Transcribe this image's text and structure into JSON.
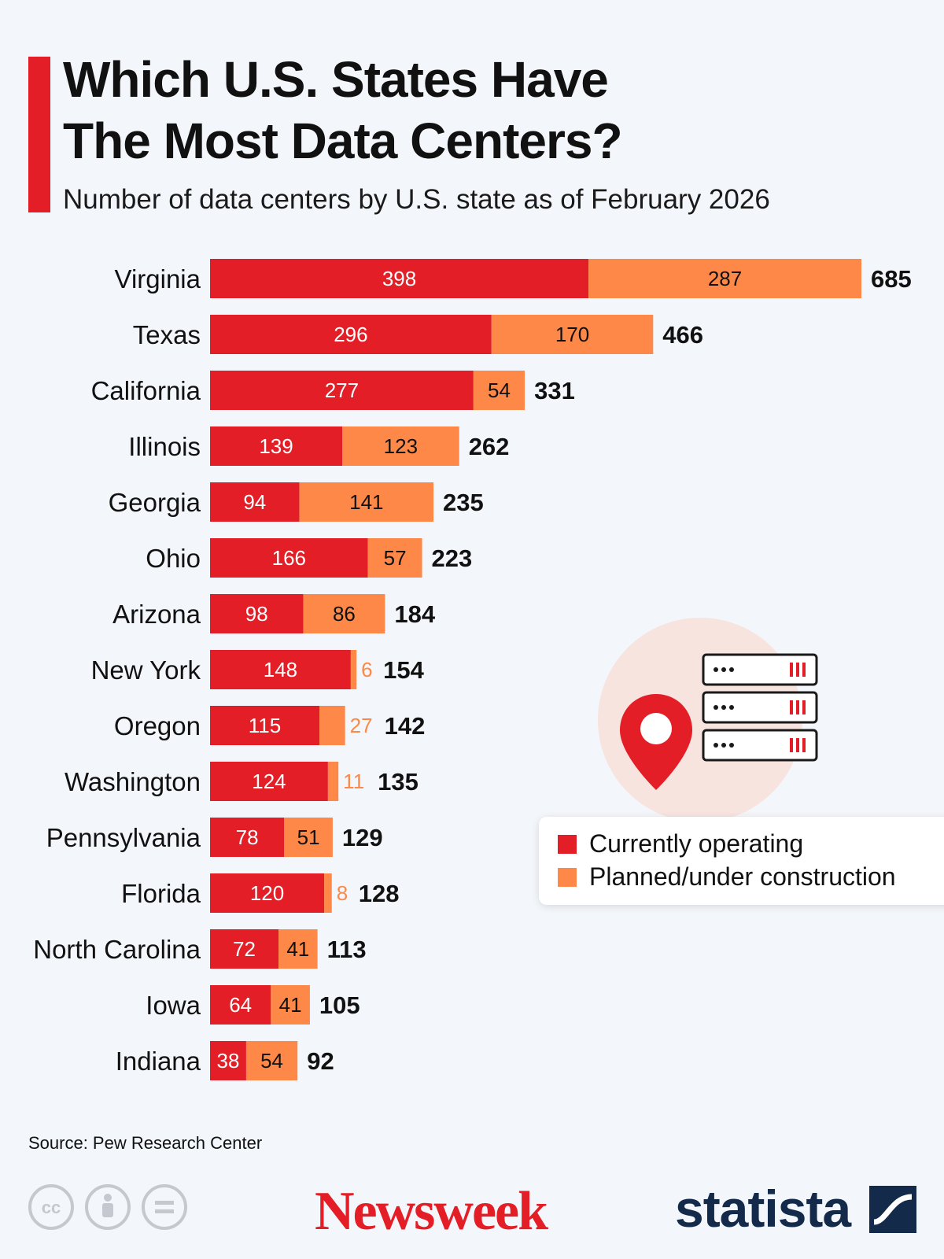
{
  "header": {
    "title_line1": "Which U.S. States Have",
    "title_line2": "The Most Data Centers?",
    "subtitle": "Number of data centers by U.S. state as of February 2026"
  },
  "chart_data": {
    "type": "bar",
    "orientation": "horizontal",
    "stacked": true,
    "title": "Which U.S. States Have The Most Data Centers?",
    "subtitle": "Number of data centers by U.S. state as of February 2026",
    "categories": [
      "Virginia",
      "Texas",
      "California",
      "Illinois",
      "Georgia",
      "Ohio",
      "Arizona",
      "New York",
      "Oregon",
      "Washington",
      "Pennsylvania",
      "Florida",
      "North Carolina",
      "Iowa",
      "Indiana"
    ],
    "series": [
      {
        "name": "Currently operating",
        "color": "#e41e26",
        "values": [
          398,
          296,
          277,
          139,
          94,
          166,
          98,
          148,
          115,
          124,
          78,
          120,
          72,
          64,
          38
        ]
      },
      {
        "name": "Planned/under construction",
        "color": "#fd8847",
        "values": [
          287,
          170,
          54,
          123,
          141,
          57,
          86,
          6,
          27,
          11,
          51,
          8,
          41,
          41,
          54
        ]
      }
    ],
    "totals": [
      685,
      466,
      331,
      262,
      235,
      223,
      184,
      154,
      142,
      135,
      129,
      128,
      113,
      105,
      92
    ],
    "xlim": [
      0,
      685
    ],
    "grid": false,
    "legend_position": "right"
  },
  "legend": {
    "items": [
      {
        "label": "Currently operating",
        "color": "#e41e26"
      },
      {
        "label": "Planned/under construction",
        "color": "#fd8847"
      }
    ]
  },
  "footer": {
    "source": "Source: Pew Research Center",
    "cc_label": "cc",
    "brand1": "Newsweek",
    "brand2": "statista"
  },
  "icons": [
    "location-pin-icon",
    "server-rack-icon",
    "creative-commons-icon",
    "attribution-icon",
    "no-derivatives-icon",
    "statista-logo-icon"
  ]
}
